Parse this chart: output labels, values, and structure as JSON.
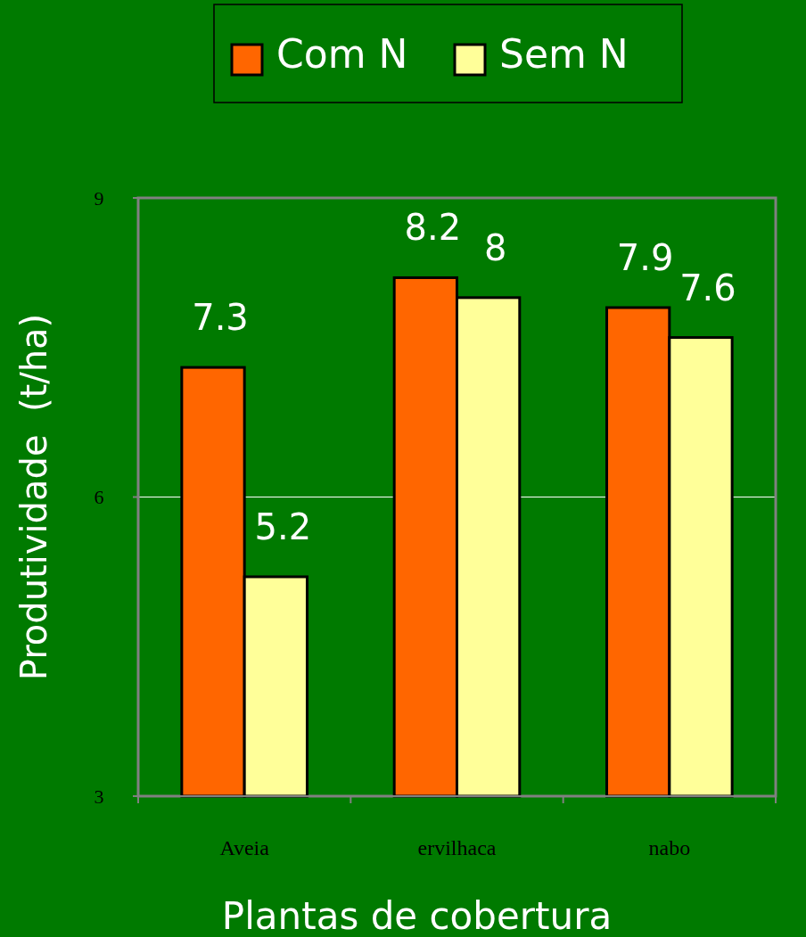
{
  "chart_data": {
    "type": "bar",
    "xlabel": "Plantas de cobertura",
    "ylabel": "Produtividade  (t/ha)",
    "categories": [
      "Aveia",
      "ervilhaca",
      "nabo"
    ],
    "series": [
      {
        "name": "Com N",
        "color": "#ff6600",
        "values": [
          7.3,
          8.2,
          7.9
        ]
      },
      {
        "name": "Sem N",
        "color": "#ffff99",
        "values": [
          5.2,
          8,
          7.6
        ]
      }
    ],
    "ylim": [
      3,
      9
    ],
    "yticks": [
      3,
      6,
      9
    ],
    "grid": "y",
    "legend": "top",
    "data_labels": true
  }
}
